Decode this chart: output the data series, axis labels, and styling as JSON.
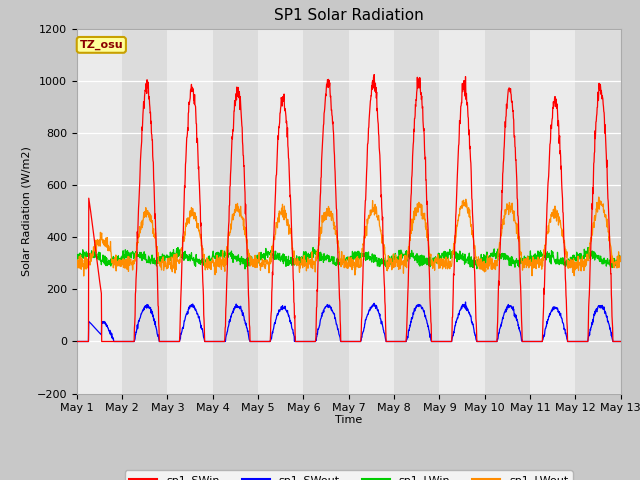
{
  "title": "SP1 Solar Radiation",
  "ylabel": "Solar Radiation (W/m2)",
  "xlabel": "Time",
  "ylim": [
    -200,
    1200
  ],
  "yticks": [
    -200,
    0,
    200,
    400,
    600,
    800,
    1000,
    1200
  ],
  "x_labels": [
    "May 1",
    "May 2",
    "May 3",
    "May 4",
    "May 5",
    "May 6",
    "May 7",
    "May 8",
    "May 9",
    "May 10",
    "May 11",
    "May 12",
    "May 13"
  ],
  "n_days": 12,
  "annotation_text": "TZ_osu",
  "annotation_color": "#8B0000",
  "annotation_bg": "#FFFF99",
  "annotation_border": "#C8A000",
  "colors": {
    "SWin": "#FF0000",
    "SWout": "#0000FF",
    "LWin": "#00CC00",
    "LWout": "#FF8C00"
  },
  "legend_labels": [
    "sp1_SWin",
    "sp1_SWout",
    "sp1_LWin",
    "sp1_LWout"
  ],
  "fig_bg_color": "#C8C8C8",
  "plot_bg_alt1": "#E8E8E8",
  "plot_bg_alt2": "#D8D8D8",
  "grid_color": "#FFFFFF",
  "sw_peaks": [
    550,
    980,
    970,
    960,
    930,
    990,
    1000,
    990,
    980,
    970,
    920,
    970
  ],
  "lw_day_peaks": [
    390,
    490,
    490,
    510,
    500,
    500,
    510,
    520,
    530,
    520,
    500,
    530
  ],
  "lw_night_base": 300,
  "lwin_base": 320
}
